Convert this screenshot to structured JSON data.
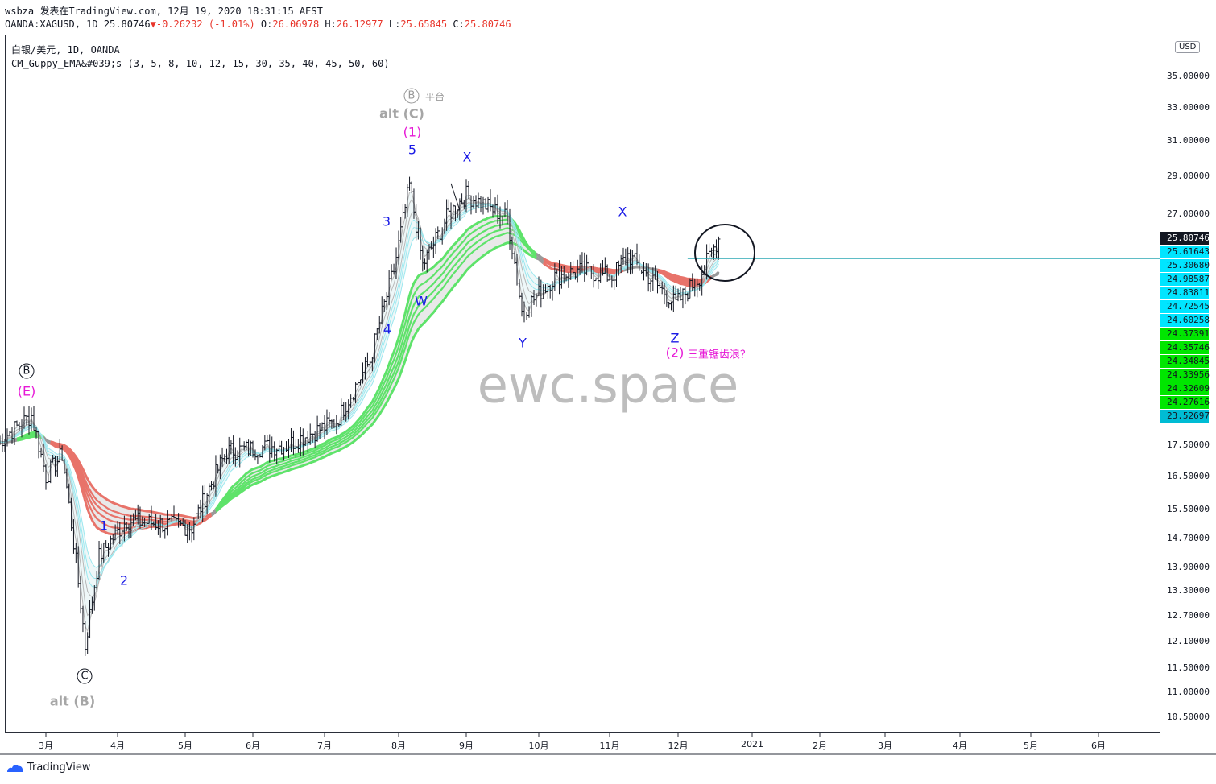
{
  "header": {
    "author": "wsbza",
    "published_text": "发表在TradingView.com, 12月 19, 2020 18:31:15 AEST",
    "symbol_line_prefix": "OANDA:XAGUSD, 1D 25.80746",
    "change_arrow": "▼",
    "change_text": "-0.26232 (-1.01%)",
    "ohlc": {
      "O": "26.06978",
      "H": "26.12977",
      "L": "25.65845",
      "C": "25.80746"
    }
  },
  "legend": {
    "line1": "白银/美元, 1D, OANDA",
    "line2": "CM_Guppy_EMA&#039;s (3, 5, 8, 10, 12, 15, 30, 35, 40, 45, 50, 60)"
  },
  "currency_button": "USD",
  "watermark": "ewc.space",
  "footer_logo": "TradingView",
  "colors": {
    "up_band": "#5ee36a",
    "down_band": "#e8736a",
    "fast_cyan": "#9be8ef",
    "neutral": "#9a9a9a",
    "wave_blue": "#1a1ae6",
    "wave_magenta": "#e619d6",
    "last_price_bg": "#131722"
  },
  "chart_data": {
    "type": "line",
    "title": "白银/美元, 1D, OANDA",
    "xlabel": "",
    "ylabel": "",
    "x_ticks": [
      "3月",
      "4月",
      "5月",
      "6月",
      "7月",
      "8月",
      "9月",
      "10月",
      "11月",
      "12月",
      "2021",
      "2月",
      "3月",
      "4月",
      "5月",
      "6月"
    ],
    "y_ticks": [
      "35.00000",
      "33.00000",
      "31.00000",
      "29.00000",
      "27.00000",
      "17.50000",
      "16.50000",
      "15.50000",
      "14.70000",
      "13.90000",
      "13.30000",
      "12.70000",
      "12.10000",
      "11.50000",
      "11.00000",
      "10.50000"
    ],
    "y_scale": "log",
    "x_range": [
      "2020-02-09",
      "2021-06-30"
    ],
    "y_range": [
      10.2,
      37.2
    ],
    "price_close_approx": [
      {
        "x": "2020-02-10",
        "y": 17.6
      },
      {
        "x": "2020-02-24",
        "y": 18.5
      },
      {
        "x": "2020-03-01",
        "y": 16.5
      },
      {
        "x": "2020-03-08",
        "y": 17.2
      },
      {
        "x": "2020-03-16",
        "y": 13.0
      },
      {
        "x": "2020-03-18",
        "y": 12.0
      },
      {
        "x": "2020-03-24",
        "y": 14.2
      },
      {
        "x": "2020-04-05",
        "y": 15.2
      },
      {
        "x": "2020-04-20",
        "y": 15.1
      },
      {
        "x": "2020-05-04",
        "y": 15.0
      },
      {
        "x": "2020-05-20",
        "y": 17.3
      },
      {
        "x": "2020-06-15",
        "y": 17.5
      },
      {
        "x": "2020-07-06",
        "y": 18.3
      },
      {
        "x": "2020-07-20",
        "y": 20.5
      },
      {
        "x": "2020-07-30",
        "y": 24.3
      },
      {
        "x": "2020-08-06",
        "y": 28.5
      },
      {
        "x": "2020-08-12",
        "y": 24.5
      },
      {
        "x": "2020-08-24",
        "y": 27.0
      },
      {
        "x": "2020-09-01",
        "y": 28.0
      },
      {
        "x": "2020-09-18",
        "y": 26.8
      },
      {
        "x": "2020-09-24",
        "y": 22.5
      },
      {
        "x": "2020-10-08",
        "y": 24.0
      },
      {
        "x": "2020-10-20",
        "y": 24.3
      },
      {
        "x": "2020-11-02",
        "y": 24.0
      },
      {
        "x": "2020-11-09",
        "y": 25.0
      },
      {
        "x": "2020-11-20",
        "y": 23.8
      },
      {
        "x": "2020-11-30",
        "y": 22.8
      },
      {
        "x": "2020-12-10",
        "y": 24.0
      },
      {
        "x": "2020-12-18",
        "y": 25.8
      }
    ],
    "last_price": "25.80746",
    "price_labels": [
      "25.61643",
      "25.30680",
      "24.98587",
      "24.83811",
      "24.72545",
      "24.60258",
      "24.37391",
      "24.35746",
      "24.34845",
      "24.33956",
      "24.32609",
      "24.27616",
      "23.52697"
    ],
    "horizontal_level": 24.84,
    "annotations": {
      "B_top": "B",
      "alt_C": "alt (C)",
      "platform": "平台",
      "wave_1_paren": "(1)",
      "wave_5": "5",
      "X1": "X",
      "X2": "X",
      "wave_3": "3",
      "wave_4": "4",
      "W": "W",
      "Y": "Y",
      "Z": "Z",
      "wave_2_paren": "(2)",
      "triple_zigzag": "三重锯齿浪？",
      "B_left": "B",
      "E_left": "(E)",
      "wave_1": "1",
      "wave_2": "2",
      "C_bottom": "C",
      "alt_B": "alt (B)"
    }
  }
}
